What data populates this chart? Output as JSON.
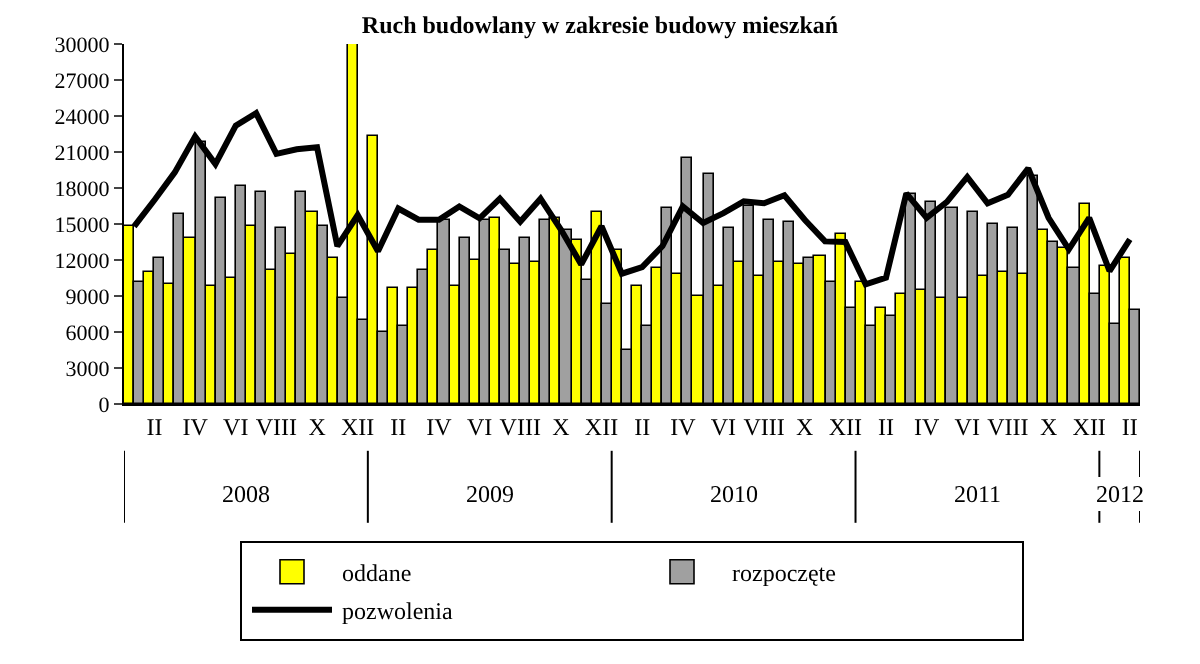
{
  "chart_data": {
    "type": "bar",
    "title": "Ruch budowlany w zakresie budowy mieszkań",
    "categories": [
      null,
      "II",
      null,
      "IV",
      null,
      "VI",
      null,
      "VIII",
      null,
      "X",
      null,
      "XII",
      null,
      "II",
      null,
      "IV",
      null,
      "VI",
      null,
      "VIII",
      null,
      "X",
      null,
      "XII",
      null,
      "II",
      null,
      "IV",
      null,
      "VI",
      null,
      "VIII",
      null,
      "X",
      null,
      "XII",
      null,
      "II",
      null,
      "IV",
      null,
      "VI",
      null,
      "VIII",
      null,
      "X",
      null,
      "XII",
      null,
      "II"
    ],
    "series": [
      {
        "name": "oddane",
        "color": "#ffff00",
        "values": [
          14800,
          11080,
          9980,
          13880,
          9760,
          10530,
          14800,
          11190,
          12450,
          15960,
          12230,
          30000,
          22320,
          9710,
          9710,
          12890,
          9870,
          11960,
          15470,
          11630,
          11790,
          15520,
          13710,
          16070,
          12890,
          9870,
          11410,
          10860,
          8940,
          9870,
          11790,
          10700,
          11790,
          11680,
          12340,
          14100,
          10150,
          8060,
          9210,
          9490,
          8780,
          8890,
          10590,
          10970,
          10860,
          14430,
          13000,
          16620,
          11520,
          12180
        ]
      },
      {
        "name": "rozpoczęte",
        "color": "#a0a0a0",
        "values": [
          10150,
          12230,
          15900,
          21780,
          17110,
          18210,
          17660,
          14650,
          17660,
          14810,
          8780,
          6970,
          5920,
          6420,
          11240,
          15360,
          13880,
          15360,
          12890,
          13880,
          15360,
          14540,
          10260,
          8390,
          4500,
          6580,
          16290,
          20570,
          19090,
          14650,
          16460,
          15360,
          15190,
          12230,
          10150,
          8060,
          6420,
          7400,
          17440,
          16890,
          16290,
          16070,
          14970,
          14650,
          18920,
          13550,
          11350,
          9210,
          6750,
          7840
        ]
      },
      {
        "name": "pozwolenia",
        "type": "line",
        "color": "#000000",
        "values": [
          14800,
          17000,
          19300,
          22300,
          20000,
          23200,
          24240,
          20840,
          21230,
          21400,
          13160,
          15740,
          12730,
          16290,
          15360,
          15360,
          16460,
          15470,
          17110,
          15190,
          17110,
          14540,
          11630,
          14810,
          10860,
          11410,
          13160,
          16460,
          15080,
          15900,
          16890,
          16730,
          17390,
          15360,
          13550,
          13500,
          9980,
          10530,
          17550,
          15520,
          16840,
          18920,
          16730,
          17440,
          19640,
          15520,
          12890,
          15520,
          11080,
          13710
        ]
      }
    ],
    "annotations": [
      "2008",
      "2009",
      "2010",
      "2011",
      "2012"
    ],
    "ylim": [
      0,
      30000
    ],
    "yticks": [
      0,
      3000,
      6000,
      9000,
      12000,
      15000,
      18000,
      21000,
      24000,
      27000,
      30000
    ],
    "grid": false,
    "legend": "bottom"
  }
}
